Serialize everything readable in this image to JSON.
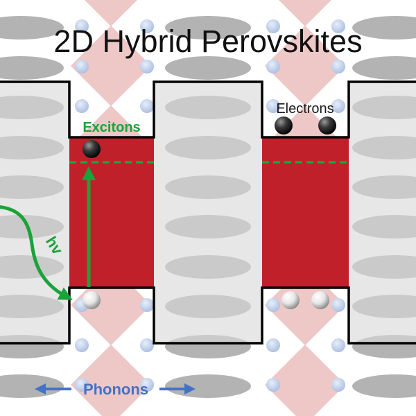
{
  "title": "2D Hybrid Perovskites",
  "labels": {
    "excitons": "Excitons",
    "electrons": "Electrons",
    "photon": "hv",
    "phonons": "Phonons"
  },
  "colors": {
    "background": "#ffffff",
    "barrier_fill": "#d9d9d9",
    "barrier_outline": "#000000",
    "organic_ellipse": "#a6a6a6",
    "inorganic_diamond": "#e8b4b4",
    "inorganic_sphere": "#c5d3ec",
    "well_fill": "#c0202a",
    "exciton_green": "#1aa33a",
    "phonon_blue": "#4472c4",
    "electron_dark": "#1a1a1a",
    "hole_light": "#f2f2f2"
  },
  "icons": {
    "electron": "dark-sphere-icon",
    "hole": "white-sphere-icon",
    "photon": "wavy-arrow-icon",
    "phonon": "double-arrow-icon"
  }
}
